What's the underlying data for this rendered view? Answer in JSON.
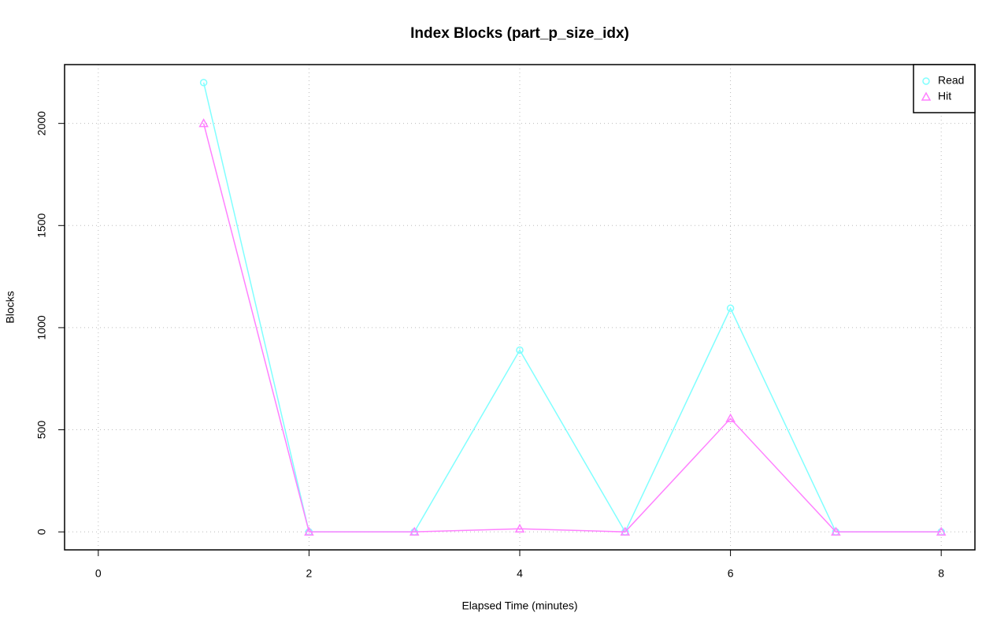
{
  "chart_data": {
    "type": "line",
    "title": "Index Blocks (part_p_size_idx)",
    "x_label": "Elapsed Time (minutes)",
    "y_label": "Blocks",
    "x": [
      1,
      2,
      3,
      4,
      5,
      6,
      7,
      8
    ],
    "series": [
      {
        "name": "Read",
        "color": "#80ffff",
        "marker": "circle",
        "values": [
          2200,
          0,
          0,
          890,
          0,
          1095,
          0,
          0
        ]
      },
      {
        "name": "Hit",
        "color": "#ff80ff",
        "marker": "triangle",
        "values": [
          2000,
          0,
          0,
          15,
          0,
          555,
          0,
          0
        ]
      }
    ],
    "xlim": [
      -0.32,
      8.32
    ],
    "xticks": [
      0,
      2,
      4,
      6,
      8
    ],
    "ylim": [
      -88,
      2288
    ],
    "yticks": [
      0,
      500,
      1000,
      1500,
      2000
    ],
    "grid": true,
    "legend": "topright"
  }
}
